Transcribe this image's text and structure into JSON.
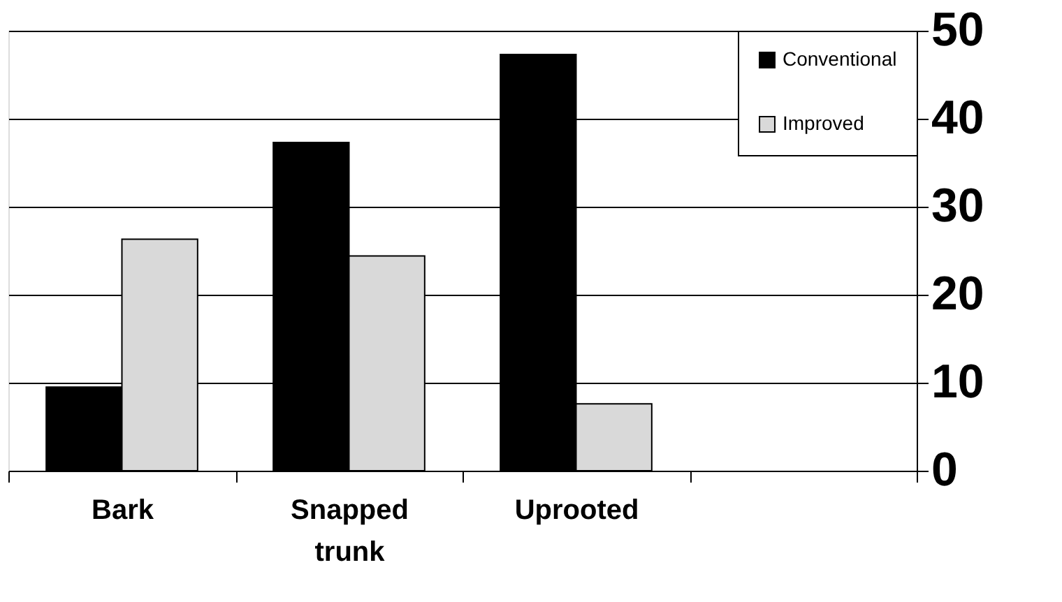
{
  "chart_data": {
    "type": "bar",
    "categories": [
      "Bark",
      "Snapped trunk",
      "Uprooted",
      null
    ],
    "series": [
      {
        "name": "Conventional",
        "color": "#000000",
        "values": [
          9.5,
          37.3,
          47.3,
          null
        ]
      },
      {
        "name": "Improved",
        "color": "#d9d9d9",
        "values": [
          26.3,
          24.4,
          7.6,
          null
        ]
      }
    ],
    "ylim": [
      0,
      50
    ],
    "yticks": [
      0,
      10,
      20,
      30,
      40,
      50
    ],
    "grid": "y",
    "legend": "top right"
  }
}
